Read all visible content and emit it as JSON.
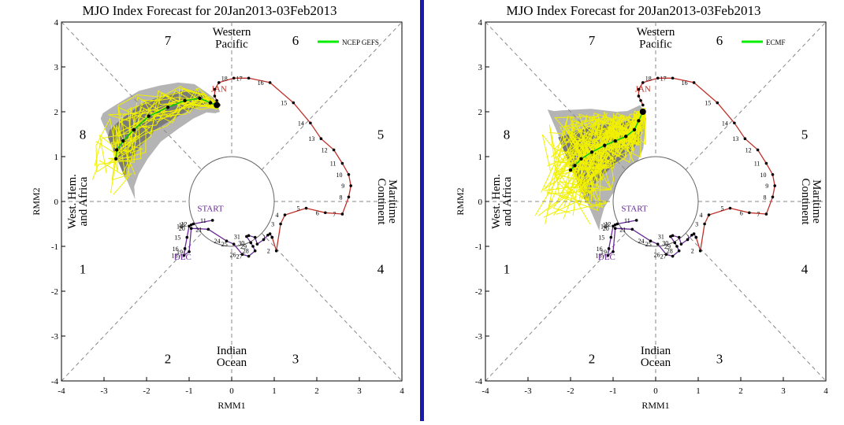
{
  "chart_data": [
    {
      "type": "scatter",
      "title": "MJO Index Forecast for 20Jan2013-03Feb2013",
      "xlabel": "RMM1",
      "ylabel": "RMM2",
      "xlim": [
        -4,
        4
      ],
      "ylim": [
        -4,
        4
      ],
      "ticks": [
        -4,
        -3,
        -2,
        -1,
        0,
        1,
        2,
        3,
        4
      ],
      "tick_labels": [
        "-4",
        "-3",
        "-2",
        "-1",
        "0",
        "1",
        "2",
        "3",
        "4"
      ],
      "legend": {
        "label": "NCEP GEFS",
        "color": "#00ee00",
        "position": "top-right"
      },
      "phase_labels": [
        "1",
        "2",
        "3",
        "4",
        "5",
        "6",
        "7",
        "8"
      ],
      "region_labels": {
        "west_pacific": [
          "Western",
          "Pacific"
        ],
        "indian_ocean": [
          "Indian",
          "Ocean"
        ],
        "maritime": [
          "Maritime",
          "Continent"
        ],
        "africa": [
          "West. Hem.",
          "and Africa"
        ]
      },
      "month_labels": [
        "START",
        "DEC",
        "JAN"
      ],
      "observed_dec": {
        "color": "#6a2a9a",
        "x": [
          -0.45,
          -0.9,
          -0.95,
          -1.0,
          -1.05,
          -1.1,
          -1.12,
          -1.0,
          -0.95,
          -0.55,
          -0.12,
          0.05,
          0.25,
          0.4,
          0.55,
          0.5,
          0.45,
          0.35,
          0.4,
          0.55,
          0.6,
          0.75,
          0.85,
          0.9,
          0.95
        ],
        "y": [
          -0.42,
          -0.5,
          -0.52,
          -0.55,
          -0.8,
          -1.05,
          -1.2,
          -1.12,
          -0.6,
          -0.62,
          -0.88,
          -0.95,
          -1.18,
          -1.22,
          -1.1,
          -1.0,
          -0.92,
          -0.78,
          -0.76,
          -0.8,
          -0.95,
          -0.85,
          -0.75,
          -0.72,
          -0.8
        ],
        "labels": [
          "11",
          "12",
          "13",
          "14",
          "15",
          "16",
          "18",
          "19",
          "20",
          "21",
          "24",
          "25",
          "26",
          "27",
          "28",
          "29",
          "30",
          "31"
        ]
      },
      "observed_jan": {
        "color": "#c0302a",
        "x": [
          0.95,
          1.05,
          1.15,
          1.25,
          1.75,
          2.2,
          2.6,
          2.75,
          2.8,
          2.75,
          2.6,
          2.4,
          2.1,
          1.85,
          1.45,
          0.9,
          0.4,
          0.05,
          -0.3,
          -0.4,
          -0.4,
          -0.35,
          -0.3
        ],
        "y": [
          -0.8,
          -1.1,
          -0.5,
          -0.3,
          -0.15,
          -0.25,
          -0.28,
          0.1,
          0.35,
          0.6,
          0.85,
          1.15,
          1.4,
          1.75,
          2.2,
          2.65,
          2.75,
          2.75,
          2.65,
          2.5,
          2.35,
          2.25,
          2.15
        ],
        "labels": [
          "1",
          "2",
          "3",
          "4",
          "5",
          "6",
          "7",
          "8",
          "9",
          "10",
          "11",
          "12",
          "13",
          "14",
          "15",
          "16",
          "17",
          "18"
        ]
      },
      "ensemble_mean": {
        "x": [
          -0.35,
          -0.5,
          -0.75,
          -1.1,
          -1.5,
          -1.95,
          -2.3,
          -2.55,
          -2.7,
          -2.72
        ],
        "y": [
          2.15,
          2.2,
          2.3,
          2.25,
          2.1,
          1.9,
          1.6,
          1.35,
          1.15,
          0.95
        ]
      }
    },
    {
      "type": "scatter",
      "title": "MJO Index Forecast for 20Jan2013-03Feb2013",
      "xlabel": "RMM1",
      "ylabel": "RMM2",
      "xlim": [
        -4,
        4
      ],
      "ylim": [
        -4,
        4
      ],
      "ticks": [
        -4,
        -3,
        -2,
        -1,
        0,
        1,
        2,
        3,
        4
      ],
      "tick_labels": [
        "-4",
        "-3",
        "-2",
        "-1",
        "0",
        "1",
        "2",
        "3",
        "4"
      ],
      "legend": {
        "label": "ECMF",
        "color": "#00ee00",
        "position": "top-right"
      },
      "phase_labels": [
        "1",
        "2",
        "3",
        "4",
        "5",
        "6",
        "7",
        "8"
      ],
      "region_labels": {
        "west_pacific": [
          "Western",
          "Pacific"
        ],
        "indian_ocean": [
          "Indian",
          "Ocean"
        ],
        "maritime": [
          "Maritime",
          "Continent"
        ],
        "africa": [
          "West. Hem.",
          "and Africa"
        ]
      },
      "month_labels": [
        "START",
        "DEC",
        "JAN"
      ],
      "observed_dec": {
        "color": "#6a2a9a",
        "x": [
          -0.45,
          -0.9,
          -0.95,
          -1.0,
          -1.05,
          -1.1,
          -1.12,
          -1.0,
          -0.95,
          -0.55,
          -0.12,
          0.05,
          0.25,
          0.4,
          0.55,
          0.5,
          0.45,
          0.35,
          0.4,
          0.55,
          0.6,
          0.75,
          0.85,
          0.9,
          0.95
        ],
        "y": [
          -0.42,
          -0.5,
          -0.52,
          -0.55,
          -0.8,
          -1.05,
          -1.2,
          -1.12,
          -0.6,
          -0.62,
          -0.88,
          -0.95,
          -1.18,
          -1.22,
          -1.1,
          -1.0,
          -0.92,
          -0.78,
          -0.76,
          -0.8,
          -0.95,
          -0.85,
          -0.75,
          -0.72,
          -0.8
        ],
        "labels": [
          "11",
          "12",
          "13",
          "14",
          "15",
          "16",
          "18",
          "19",
          "20",
          "21",
          "24",
          "25",
          "26",
          "27",
          "28",
          "29",
          "30",
          "31"
        ]
      },
      "observed_jan": {
        "color": "#c0302a",
        "x": [
          0.95,
          1.05,
          1.15,
          1.25,
          1.75,
          2.2,
          2.6,
          2.75,
          2.8,
          2.75,
          2.6,
          2.4,
          2.1,
          1.85,
          1.45,
          0.9,
          0.4,
          0.05,
          -0.3,
          -0.4,
          -0.4,
          -0.35,
          -0.3
        ],
        "y": [
          -0.8,
          -1.1,
          -0.5,
          -0.3,
          -0.15,
          -0.25,
          -0.28,
          0.1,
          0.35,
          0.6,
          0.85,
          1.15,
          1.4,
          1.75,
          2.2,
          2.65,
          2.75,
          2.75,
          2.65,
          2.5,
          2.35,
          2.25,
          2.15
        ],
        "labels": [
          "1",
          "2",
          "3",
          "4",
          "5",
          "6",
          "7",
          "8",
          "9",
          "10",
          "11",
          "12",
          "13",
          "14",
          "15",
          "16",
          "17",
          "18"
        ]
      },
      "ensemble_mean": {
        "x": [
          -0.3,
          -0.4,
          -0.5,
          -0.7,
          -0.95,
          -1.2,
          -1.5,
          -1.75,
          -1.9,
          -2.0
        ],
        "y": [
          2.0,
          1.8,
          1.6,
          1.45,
          1.35,
          1.25,
          1.1,
          0.95,
          0.8,
          0.7
        ]
      }
    }
  ]
}
